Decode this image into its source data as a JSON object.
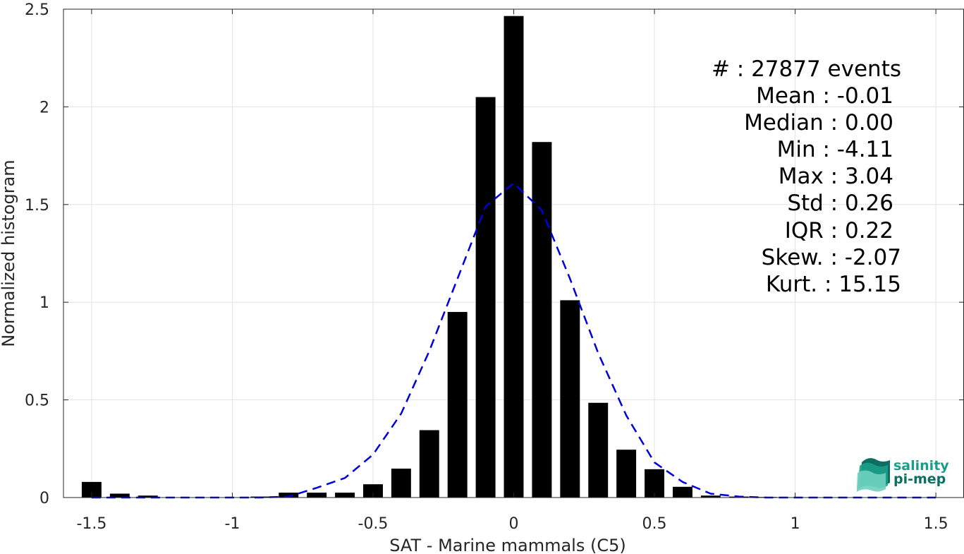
{
  "chart_data": {
    "type": "bar",
    "xlabel": "SAT - Marine mammals (C5)",
    "ylabel": "Normalized histogram",
    "xlim": [
      -1.6,
      1.6
    ],
    "ylim": [
      0,
      2.5
    ],
    "xticks": [
      -1.5,
      -1,
      -0.5,
      0,
      0.5,
      1,
      1.5
    ],
    "xtick_labels": [
      "-1.5",
      "-1",
      "-0.5",
      "0",
      "0.5",
      "1",
      "1.5"
    ],
    "yticks": [
      0,
      0.5,
      1,
      1.5,
      2,
      2.5
    ],
    "ytick_labels": [
      "0",
      "0.5",
      "1",
      "1.5",
      "2",
      "2.5"
    ],
    "grid": true,
    "bar_color": "#000000",
    "fit_color": "#0000dd",
    "bar_width": 0.07,
    "x": [
      -1.5,
      -1.4,
      -1.3,
      -1.2,
      -1.1,
      -1.0,
      -0.9,
      -0.8,
      -0.7,
      -0.6,
      -0.5,
      -0.4,
      -0.3,
      -0.2,
      -0.1,
      0.0,
      0.1,
      0.2,
      0.3,
      0.4,
      0.5,
      0.6,
      0.7,
      0.8,
      0.9,
      1.0,
      1.1,
      1.2,
      1.3,
      1.4,
      1.5
    ],
    "values": [
      0.08,
      0.02,
      0.01,
      0.0,
      0.0,
      0.0,
      0.005,
      0.025,
      0.025,
      0.025,
      0.068,
      0.148,
      0.345,
      0.95,
      2.05,
      2.465,
      1.82,
      1.01,
      0.485,
      0.245,
      0.145,
      0.055,
      0.01,
      0.005,
      0.003,
      0.0,
      0.0,
      0.0,
      0.0,
      0.0,
      0.0
    ],
    "series": [
      {
        "type": "line",
        "style": "dashed",
        "x": [
          -1.5,
          -1.4,
          -1.3,
          -1.2,
          -1.1,
          -1.0,
          -0.9,
          -0.8,
          -0.7,
          -0.6,
          -0.5,
          -0.4,
          -0.3,
          -0.2,
          -0.1,
          0.0,
          0.1,
          0.2,
          0.3,
          0.4,
          0.5,
          0.6,
          0.7,
          0.8,
          0.9,
          1.0,
          1.1,
          1.2,
          1.3,
          1.4,
          1.5
        ],
        "values": [
          0.0,
          0.0,
          0.0,
          0.0,
          0.0,
          0.0,
          0.0,
          0.005,
          0.05,
          0.1,
          0.22,
          0.43,
          0.75,
          1.12,
          1.49,
          1.61,
          1.47,
          1.12,
          0.74,
          0.42,
          0.18,
          0.08,
          0.02,
          0.005,
          0.0,
          0.0,
          0.0,
          0.0,
          0.0,
          0.0,
          0.0
        ]
      }
    ]
  },
  "stats": [
    "#  : 27877 events",
    "Mean : -0.01",
    "Median : 0.00",
    "Min : -4.11",
    "Max : 3.04",
    "Std : 0.26",
    "IQR : 0.22",
    "Skew. : -2.07",
    "Kurt. : 15.15"
  ],
  "logo": {
    "line1": "salinity",
    "line2": "pi-mep",
    "icon": "salinity-wave-icon",
    "colors": [
      "#1a9e8a",
      "#6fd1bf",
      "#0d6f62"
    ]
  }
}
